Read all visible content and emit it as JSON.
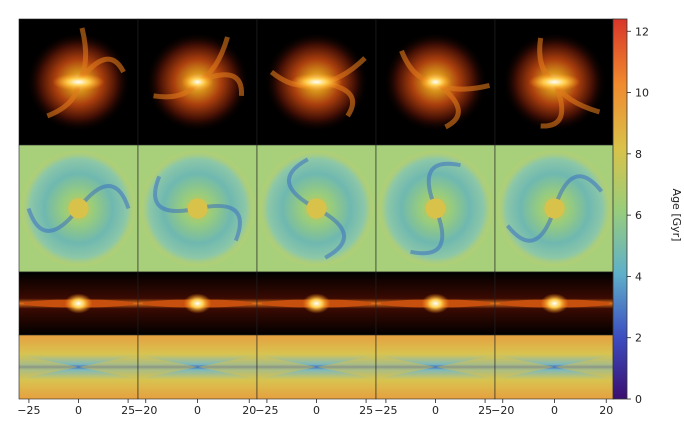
{
  "chart_data": {
    "type": "image-grid",
    "rows": [
      "face-on-light",
      "face-on-age",
      "edge-on-light",
      "edge-on-age"
    ],
    "columns": 5,
    "colorbar": {
      "label": "Age [Gyr]",
      "ticks": [
        0,
        2,
        4,
        6,
        8,
        10,
        12
      ],
      "range": [
        0,
        12.4
      ],
      "colors": [
        "#3b0f70",
        "#3b4cc0",
        "#5fb0c9",
        "#9acd7a",
        "#d9c24a",
        "#f08a2e",
        "#d8362a"
      ]
    },
    "x_axes": [
      {
        "ticks": [
          -25,
          0,
          25
        ],
        "range": [
          -30,
          30
        ],
        "tick_labels": [
          "−25",
          "0",
          "25"
        ]
      },
      {
        "ticks": [
          -20,
          0,
          20
        ],
        "range": [
          -23,
          23
        ],
        "tick_labels": [
          "−20",
          "0",
          "20"
        ]
      },
      {
        "ticks": [
          -25,
          0,
          25
        ],
        "range": [
          -30,
          30
        ],
        "tick_labels": [
          "−25",
          "0",
          "25"
        ]
      },
      {
        "ticks": [
          -25,
          0,
          25
        ],
        "range": [
          -30,
          30
        ],
        "tick_labels": [
          "−25",
          "0",
          "25"
        ]
      },
      {
        "ticks": [
          -20,
          0,
          20
        ],
        "range": [
          -23,
          23
        ],
        "tick_labels": [
          "−20",
          "0",
          "20"
        ]
      }
    ]
  }
}
